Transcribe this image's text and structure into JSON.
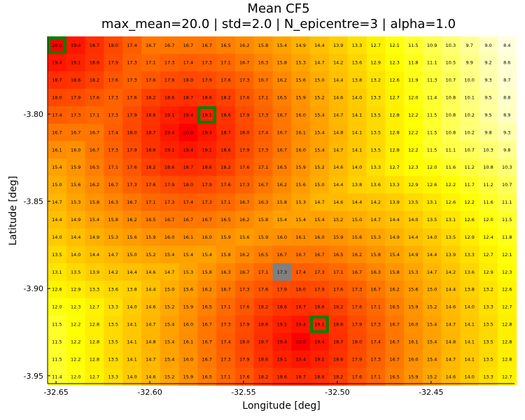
{
  "chart_data": {
    "type": "heatmap",
    "title": "Mean CF5",
    "subtitle": "max_mean=20.0 | std=2.0 | N_epicentre=3 | alpha=1.0",
    "xlabel": "Longitude [deg]",
    "ylabel": "Latitude [deg]",
    "x_ticks": [
      {
        "value": -32.65,
        "label": "-32.65"
      },
      {
        "value": -32.6,
        "label": "-32.60"
      },
      {
        "value": -32.55,
        "label": "-32.55"
      },
      {
        "value": -32.5,
        "label": "-32.50"
      },
      {
        "value": -32.45,
        "label": "-32.45"
      }
    ],
    "y_ticks": [
      {
        "value": -3.8,
        "label": "-3.80"
      },
      {
        "value": -3.85,
        "label": "-3.85"
      },
      {
        "value": -3.9,
        "label": "-3.90"
      },
      {
        "value": -3.95,
        "label": "-3.95"
      }
    ],
    "x_range": [
      -32.6545,
      -32.4055
    ],
    "y_range": [
      -3.9545,
      -3.7555
    ],
    "cell_size_deg": 0.01,
    "colormap": [
      "#ffffe0",
      "#ffff00",
      "#ff8c00",
      "#ff0000"
    ],
    "color_range": [
      8.4,
      20.0
    ],
    "masked_color": "#808080",
    "epicentre_color": "#008000",
    "masked_cells": [
      [
        13,
        12
      ]
    ],
    "epicentres": [
      [
        0,
        0
      ],
      [
        4,
        8
      ],
      [
        16,
        14
      ]
    ],
    "rows": [
      [
        "20.0",
        "19.4",
        "18.7",
        "18.0",
        "17.4",
        "16.7",
        "16.7",
        "16.7",
        "16.7",
        "16.5",
        "16.2",
        "15.8",
        "15.4",
        "14.9",
        "14.4",
        "13.9",
        "13.3",
        "12.7",
        "12.1",
        "11.5",
        "10.9",
        "10.3",
        "9.7",
        "9.0",
        "8.4"
      ],
      [
        "19.4",
        "19.1",
        "18.6",
        "17.9",
        "17.3",
        "17.1",
        "17.3",
        "17.4",
        "17.3",
        "17.1",
        "16.7",
        "16.3",
        "15.8",
        "15.3",
        "14.7",
        "14.2",
        "13.6",
        "12.9",
        "12.3",
        "11.8",
        "11.1",
        "10.5",
        "9.9",
        "9.2",
        "8.6"
      ],
      [
        "18.7",
        "18.6",
        "18.2",
        "17.6",
        "17.3",
        "17.6",
        "17.9",
        "18.0",
        "17.9",
        "17.6",
        "17.3",
        "16.7",
        "16.2",
        "15.6",
        "15.0",
        "14.4",
        "13.8",
        "13.2",
        "12.6",
        "11.9",
        "11.3",
        "10.7",
        "10.0",
        "9.3",
        "8.7"
      ],
      [
        "18.0",
        "17.9",
        "17.6",
        "17.3",
        "17.6",
        "18.2",
        "18.6",
        "18.7",
        "18.6",
        "18.2",
        "17.6",
        "17.1",
        "16.5",
        "15.9",
        "15.2",
        "14.6",
        "14.0",
        "13.3",
        "12.7",
        "12.0",
        "11.4",
        "10.8",
        "10.1",
        "9.5",
        "8.8"
      ],
      [
        "17.4",
        "17.3",
        "17.1",
        "17.3",
        "17.9",
        "18.6",
        "19.1",
        "19.4",
        "19.1",
        "18.6",
        "17.9",
        "17.3",
        "16.7",
        "16.0",
        "15.4",
        "14.7",
        "14.1",
        "13.5",
        "12.8",
        "12.2",
        "11.5",
        "10.8",
        "10.2",
        "9.5",
        "8.9"
      ],
      [
        "16.7",
        "16.7",
        "16.7",
        "17.4",
        "18.0",
        "18.7",
        "19.4",
        "20.0",
        "19.4",
        "18.7",
        "18.0",
        "17.4",
        "16.7",
        "16.1",
        "15.4",
        "14.8",
        "14.1",
        "13.5",
        "12.8",
        "12.2",
        "11.5",
        "10.8",
        "10.2",
        "9.8",
        "9.3"
      ],
      [
        "16.1",
        "16.0",
        "16.7",
        "17.3",
        "17.9",
        "18.6",
        "19.1",
        "19.4",
        "19.1",
        "18.6",
        "17.9",
        "17.3",
        "16.7",
        "16.0",
        "15.4",
        "14.7",
        "14.1",
        "13.5",
        "12.8",
        "12.2",
        "11.5",
        "11.1",
        "10.7",
        "10.3",
        "9.8"
      ],
      [
        "15.4",
        "15.9",
        "16.5",
        "17.1",
        "17.6",
        "18.2",
        "18.6",
        "18.7",
        "18.6",
        "18.2",
        "17.6",
        "17.1",
        "16.5",
        "15.9",
        "15.2",
        "14.6",
        "14.0",
        "13.3",
        "12.7",
        "12.3",
        "12.0",
        "11.6",
        "11.2",
        "10.8",
        "10.3"
      ],
      [
        "15.0",
        "15.6",
        "16.2",
        "16.7",
        "17.3",
        "17.6",
        "17.9",
        "18.0",
        "17.9",
        "17.6",
        "17.3",
        "16.7",
        "16.2",
        "15.6",
        "15.0",
        "14.4",
        "13.8",
        "13.6",
        "13.3",
        "12.9",
        "12.6",
        "12.2",
        "11.7",
        "11.2",
        "10.7"
      ],
      [
        "14.7",
        "15.3",
        "15.8",
        "16.3",
        "16.7",
        "17.1",
        "17.3",
        "17.4",
        "17.3",
        "17.1",
        "16.7",
        "16.3",
        "15.8",
        "15.3",
        "14.7",
        "14.6",
        "14.4",
        "14.2",
        "13.9",
        "13.5",
        "13.1",
        "12.6",
        "12.2",
        "11.6",
        "11.1"
      ],
      [
        "14.4",
        "14.9",
        "15.4",
        "15.8",
        "16.2",
        "16.5",
        "16.7",
        "16.7",
        "16.7",
        "16.5",
        "16.2",
        "15.8",
        "15.4",
        "15.4",
        "15.4",
        "15.2",
        "15.0",
        "14.7",
        "14.4",
        "14.0",
        "13.5",
        "13.1",
        "12.6",
        "12.0",
        "11.5"
      ],
      [
        "14.0",
        "14.4",
        "14.9",
        "15.3",
        "15.6",
        "15.9",
        "16.0",
        "16.1",
        "16.0",
        "15.9",
        "15.6",
        "15.9",
        "16.0",
        "16.1",
        "16.0",
        "15.9",
        "15.6",
        "15.3",
        "14.9",
        "14.4",
        "14.0",
        "13.5",
        "12.9",
        "12.4",
        "11.8"
      ],
      [
        "13.5",
        "14.0",
        "14.4",
        "14.7",
        "15.0",
        "15.2",
        "15.4",
        "15.4",
        "15.4",
        "15.8",
        "16.2",
        "16.5",
        "16.7",
        "16.7",
        "16.7",
        "16.5",
        "16.2",
        "15.8",
        "15.4",
        "14.9",
        "14.4",
        "13.9",
        "13.3",
        "12.7",
        "12.1"
      ],
      [
        "13.1",
        "13.5",
        "13.9",
        "14.2",
        "14.4",
        "14.6",
        "14.7",
        "15.3",
        "15.8",
        "16.3",
        "16.7",
        "17.1",
        "17.3",
        "17.4",
        "17.3",
        "17.1",
        "16.7",
        "16.3",
        "15.8",
        "15.3",
        "14.7",
        "14.2",
        "13.6",
        "12.9",
        "12.3"
      ],
      [
        "12.6",
        "12.9",
        "13.3",
        "13.6",
        "13.8",
        "14.4",
        "15.0",
        "15.6",
        "16.2",
        "16.7",
        "17.3",
        "17.6",
        "17.9",
        "18.0",
        "17.9",
        "17.6",
        "17.3",
        "16.7",
        "16.2",
        "15.6",
        "15.0",
        "14.4",
        "13.8",
        "13.2",
        "12.6"
      ],
      [
        "12.0",
        "12.3",
        "12.7",
        "13.3",
        "14.0",
        "14.6",
        "15.2",
        "15.9",
        "16.5",
        "17.1",
        "17.6",
        "18.2",
        "18.6",
        "18.7",
        "18.6",
        "18.2",
        "17.6",
        "17.1",
        "16.5",
        "15.9",
        "15.2",
        "14.6",
        "14.0",
        "13.3",
        "12.7"
      ],
      [
        "11.5",
        "12.2",
        "12.8",
        "13.5",
        "14.1",
        "14.7",
        "15.4",
        "16.0",
        "16.7",
        "17.3",
        "17.9",
        "18.6",
        "19.1",
        "19.4",
        "19.1",
        "18.6",
        "17.9",
        "17.3",
        "16.7",
        "16.0",
        "15.4",
        "14.7",
        "14.1",
        "13.5",
        "12.8"
      ],
      [
        "11.5",
        "12.2",
        "12.8",
        "13.5",
        "14.1",
        "14.8",
        "15.4",
        "16.1",
        "16.7",
        "17.4",
        "18.0",
        "18.7",
        "19.4",
        "20.0",
        "19.4",
        "18.7",
        "18.0",
        "17.4",
        "16.7",
        "16.1",
        "15.4",
        "14.8",
        "14.1",
        "13.5",
        "12.8"
      ],
      [
        "11.5",
        "12.2",
        "12.8",
        "13.5",
        "14.1",
        "14.7",
        "15.4",
        "16.0",
        "16.7",
        "17.3",
        "17.9",
        "18.6",
        "19.1",
        "19.4",
        "19.1",
        "18.6",
        "17.9",
        "17.3",
        "16.7",
        "16.0",
        "15.4",
        "14.7",
        "14.1",
        "13.5",
        "12.8"
      ],
      [
        "11.4",
        "12.0",
        "12.7",
        "13.3",
        "14.0",
        "14.6",
        "15.2",
        "15.9",
        "16.5",
        "17.1",
        "17.6",
        "18.2",
        "18.6",
        "18.7",
        "18.6",
        "18.2",
        "17.6",
        "17.1",
        "16.5",
        "15.9",
        "15.2",
        "14.6",
        "14.0",
        "13.3",
        "12.7"
      ]
    ]
  }
}
